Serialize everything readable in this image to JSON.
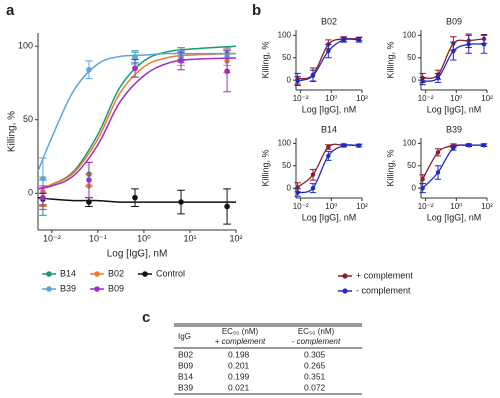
{
  "panel_labels": [
    "a",
    "b",
    "c"
  ],
  "chart_data": [
    {
      "type": "scatter",
      "xlabel": "Log [IgG], nM",
      "ylabel": "Killing, %",
      "log_x": true,
      "xlim": [
        0.005,
        100
      ],
      "ylim": [
        -25,
        109
      ],
      "xticks": [
        {
          "value": 0.01,
          "label": "10⁻²"
        },
        {
          "value": 0.1,
          "label": "10⁻¹"
        },
        {
          "value": 1,
          "label": "10⁰"
        },
        {
          "value": 10,
          "label": "10¹"
        },
        {
          "value": 100,
          "label": "10²"
        }
      ],
      "yticks": [
        0,
        50,
        100
      ],
      "x": [
        0.0064,
        0.064,
        0.64,
        6.4,
        64
      ],
      "series": [
        {
          "name": "B14",
          "color": "#1a9a6c",
          "values": [
            -3,
            13,
            92,
            95,
            95
          ],
          "errors": [
            12,
            8,
            4,
            4,
            3
          ],
          "fit": {
            "x": [
              0.005,
              0.01,
              0.03,
              0.1,
              0.3,
              1,
              3,
              10,
              100
            ],
            "values": [
              3,
              6,
              15,
              40,
              72,
              90,
              96,
              98,
              100
            ]
          }
        },
        {
          "name": "B02",
          "color": "#f07a2a",
          "values": [
            1,
            5,
            85,
            92,
            90
          ],
          "errors": [
            10,
            8,
            6,
            5,
            8
          ],
          "fit": {
            "x": [
              0.005,
              0.01,
              0.03,
              0.1,
              0.3,
              1,
              3,
              10,
              100
            ],
            "values": [
              3,
              6,
              14,
              37,
              68,
              86,
              92,
              94,
              95
            ]
          }
        },
        {
          "name": "Control",
          "color": "#111111",
          "values": [
            -4,
            -6,
            -3,
            -6,
            -9
          ],
          "errors": [
            4,
            3,
            6,
            8,
            12
          ],
          "fit": {
            "x": [
              0.005,
              0.01,
              0.03,
              0.1,
              0.3,
              1,
              3,
              10,
              100
            ],
            "values": [
              -3,
              -4,
              -5,
              -5,
              -6,
              -6,
              -6,
              -6,
              -6
            ]
          }
        },
        {
          "name": "B39",
          "color": "#5aa5e0",
          "values": [
            10,
            84,
            93,
            93,
            93
          ],
          "errors": [
            14,
            6,
            4,
            4,
            6
          ],
          "fit": {
            "x": [
              0.005,
              0.01,
              0.03,
              0.1,
              0.3,
              1,
              3,
              10,
              100
            ],
            "values": [
              15,
              38,
              70,
              88,
              93,
              94,
              95,
              95,
              95
            ]
          }
        },
        {
          "name": "B09",
          "color": "#9b30c8",
          "values": [
            -3,
            9,
            85,
            90,
            83
          ],
          "errors": [
            8,
            12,
            6,
            6,
            14
          ],
          "fit": {
            "x": [
              0.005,
              0.01,
              0.03,
              0.1,
              0.3,
              1,
              3,
              10,
              100
            ],
            "values": [
              3,
              5,
              12,
              33,
              62,
              80,
              88,
              91,
              92
            ]
          }
        }
      ]
    },
    {
      "type": "scatter",
      "title": "B02",
      "xlabel": "Log [IgG], nM",
      "ylabel": "Killing, %",
      "log_x": true,
      "xlim": [
        0.005,
        100
      ],
      "ylim": [
        -22,
        112
      ],
      "xticks": [
        {
          "value": 0.01,
          "label": "10⁻²"
        },
        {
          "value": 1,
          "label": "10⁰"
        },
        {
          "value": 100,
          "label": "10²"
        }
      ],
      "yticks": [
        0,
        50,
        100
      ],
      "x": [
        0.0064,
        0.064,
        0.64,
        6.4,
        64
      ],
      "series": [
        {
          "values": [
            3,
            12,
            80,
            92,
            92
          ],
          "errors": [
            12,
            15,
            10,
            5,
            4
          ]
        },
        {
          "values": [
            -2,
            10,
            65,
            90,
            90
          ],
          "errors": [
            10,
            12,
            15,
            5,
            5
          ]
        }
      ]
    },
    {
      "type": "scatter",
      "title": "B09",
      "xlabel": "Log [IgG], nM",
      "ylabel": "Killing, %",
      "log_x": true,
      "xlim": [
        0.005,
        100
      ],
      "ylim": [
        -22,
        112
      ],
      "xticks": [
        {
          "value": 0.01,
          "label": "10⁻²"
        },
        {
          "value": 1,
          "label": "10⁰"
        },
        {
          "value": 100,
          "label": "10²"
        }
      ],
      "yticks": [
        0,
        50,
        100
      ],
      "x": [
        0.0064,
        0.064,
        0.64,
        6.4,
        64
      ],
      "series": [
        {
          "values": [
            5,
            12,
            82,
            88,
            92
          ],
          "errors": [
            10,
            10,
            15,
            15,
            10
          ]
        },
        {
          "values": [
            -2,
            5,
            65,
            80,
            80
          ],
          "errors": [
            8,
            10,
            20,
            20,
            20
          ]
        }
      ]
    },
    {
      "type": "scatter",
      "title": "B14",
      "xlabel": "Log [IgG], nM",
      "ylabel": "Killing, %",
      "log_x": true,
      "xlim": [
        0.005,
        100
      ],
      "ylim": [
        -22,
        112
      ],
      "xticks": [
        {
          "value": 0.01,
          "label": "10⁻²"
        },
        {
          "value": 1,
          "label": "10⁰"
        },
        {
          "value": 100,
          "label": "10²"
        }
      ],
      "yticks": [
        0,
        50,
        100
      ],
      "x": [
        0.0064,
        0.064,
        0.64,
        6.4,
        64
      ],
      "series": [
        {
          "values": [
            2,
            30,
            92,
            96,
            95
          ],
          "errors": [
            10,
            12,
            5,
            3,
            3
          ]
        },
        {
          "values": [
            -10,
            0,
            72,
            95,
            95
          ],
          "errors": [
            8,
            10,
            10,
            3,
            3
          ]
        }
      ]
    },
    {
      "type": "scatter",
      "title": "B39",
      "xlabel": "Log [IgG], nM",
      "ylabel": "Killing, %",
      "log_x": true,
      "xlim": [
        0.005,
        100
      ],
      "ylim": [
        -22,
        112
      ],
      "xticks": [
        {
          "value": 0.01,
          "label": "10⁻²"
        },
        {
          "value": 1,
          "label": "10⁰"
        },
        {
          "value": 100,
          "label": "10²"
        }
      ],
      "yticks": [
        0,
        50,
        100
      ],
      "x": [
        0.0064,
        0.064,
        0.64,
        6.4,
        64
      ],
      "series": [
        {
          "values": [
            20,
            80,
            95,
            96,
            96
          ],
          "errors": [
            10,
            8,
            4,
            3,
            3
          ]
        },
        {
          "values": [
            0,
            35,
            90,
            96,
            96
          ],
          "errors": [
            10,
            15,
            5,
            3,
            3
          ]
        }
      ]
    }
  ],
  "panel_b_legend": [
    {
      "name": "+ complement",
      "color": "#8b1c2c"
    },
    {
      "name": "- complement",
      "color": "#1c2cc0"
    }
  ],
  "table": {
    "columns": [
      [
        "IgG"
      ],
      [
        "EC₅₀ (nM)",
        "+ complement"
      ],
      [
        "EC₅₀ (nM)",
        "- complement"
      ]
    ],
    "rows": [
      [
        "B02",
        "0.198",
        "0.305"
      ],
      [
        "B09",
        "0.201",
        "0.265"
      ],
      [
        "B14",
        "0.199",
        "0.351"
      ],
      [
        "B39",
        "0.021",
        "0.072"
      ]
    ]
  }
}
